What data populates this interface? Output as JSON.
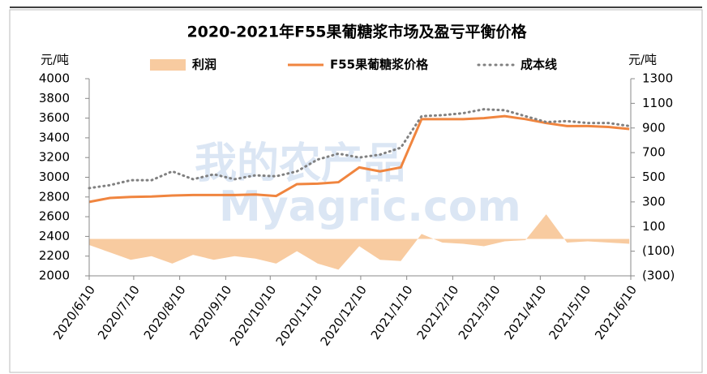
{
  "chart_data": {
    "type": "combo",
    "title": "2020-2021年F55果葡糖浆市场及盈亏平衡价格",
    "y_label": "元/吨",
    "y2_label": "元/吨",
    "watermark": [
      "我的农产品",
      "Myagric.com"
    ],
    "x": [
      0,
      14,
      28,
      42,
      56,
      70,
      84,
      98,
      112,
      126,
      140,
      154,
      168,
      182,
      196,
      210,
      224,
      238,
      252,
      266,
      280,
      294,
      308,
      322,
      336,
      350,
      364
    ],
    "xlim": [
      0,
      365
    ],
    "xticks": [
      {
        "value": 0,
        "label": "2020/6/10"
      },
      {
        "value": 30,
        "label": "2020/7/10"
      },
      {
        "value": 61,
        "label": "2020/8/10"
      },
      {
        "value": 92,
        "label": "2020/9/10"
      },
      {
        "value": 122,
        "label": "2020/10/10"
      },
      {
        "value": 153,
        "label": "2020/11/10"
      },
      {
        "value": 183,
        "label": "2020/12/10"
      },
      {
        "value": 214,
        "label": "2021/1/10"
      },
      {
        "value": 245,
        "label": "2021/2/10"
      },
      {
        "value": 273,
        "label": "2021/3/10"
      },
      {
        "value": 304,
        "label": "2021/4/10"
      },
      {
        "value": 334,
        "label": "2021/5/10"
      },
      {
        "value": 365,
        "label": "2021/6/10"
      }
    ],
    "ylim": [
      2000,
      4000
    ],
    "yticks": [
      2000,
      2200,
      2400,
      2600,
      2800,
      3000,
      3200,
      3400,
      3600,
      3800,
      4000
    ],
    "y2lim": [
      -300,
      1300
    ],
    "y2ticks": [
      {
        "value": -300,
        "label": "(300)"
      },
      {
        "value": -100,
        "label": "(100)"
      },
      100,
      300,
      500,
      700,
      900,
      1100,
      1300
    ],
    "negative_tick_color": "#ff0000",
    "series": [
      {
        "name": "利润",
        "kind": "area",
        "axis": "y2",
        "color": "#f8cba0",
        "values": [
          -50,
          -110,
          -170,
          -140,
          -200,
          -130,
          -170,
          -140,
          -160,
          -200,
          -100,
          -200,
          -250,
          -60,
          -170,
          -180,
          40,
          -30,
          -40,
          -60,
          -20,
          -10,
          200,
          -30,
          -20,
          -30,
          -40
        ]
      },
      {
        "name": "F55果葡糖浆价格",
        "kind": "line",
        "color": "#f0853f",
        "values": [
          2750,
          2790,
          2800,
          2805,
          2815,
          2820,
          2820,
          2820,
          2825,
          2810,
          2930,
          2935,
          2950,
          3100,
          3060,
          3100,
          3590,
          3590,
          3590,
          3600,
          3620,
          3590,
          3550,
          3520,
          3520,
          3510,
          3490
        ]
      },
      {
        "name": "成本线",
        "kind": "dotted",
        "color": "#808080",
        "values": [
          2890,
          2920,
          2970,
          2970,
          3060,
          2980,
          3030,
          2980,
          3020,
          3010,
          3060,
          3180,
          3240,
          3200,
          3230,
          3300,
          3620,
          3630,
          3650,
          3690,
          3680,
          3620,
          3560,
          3570,
          3550,
          3550,
          3520
        ]
      }
    ]
  }
}
